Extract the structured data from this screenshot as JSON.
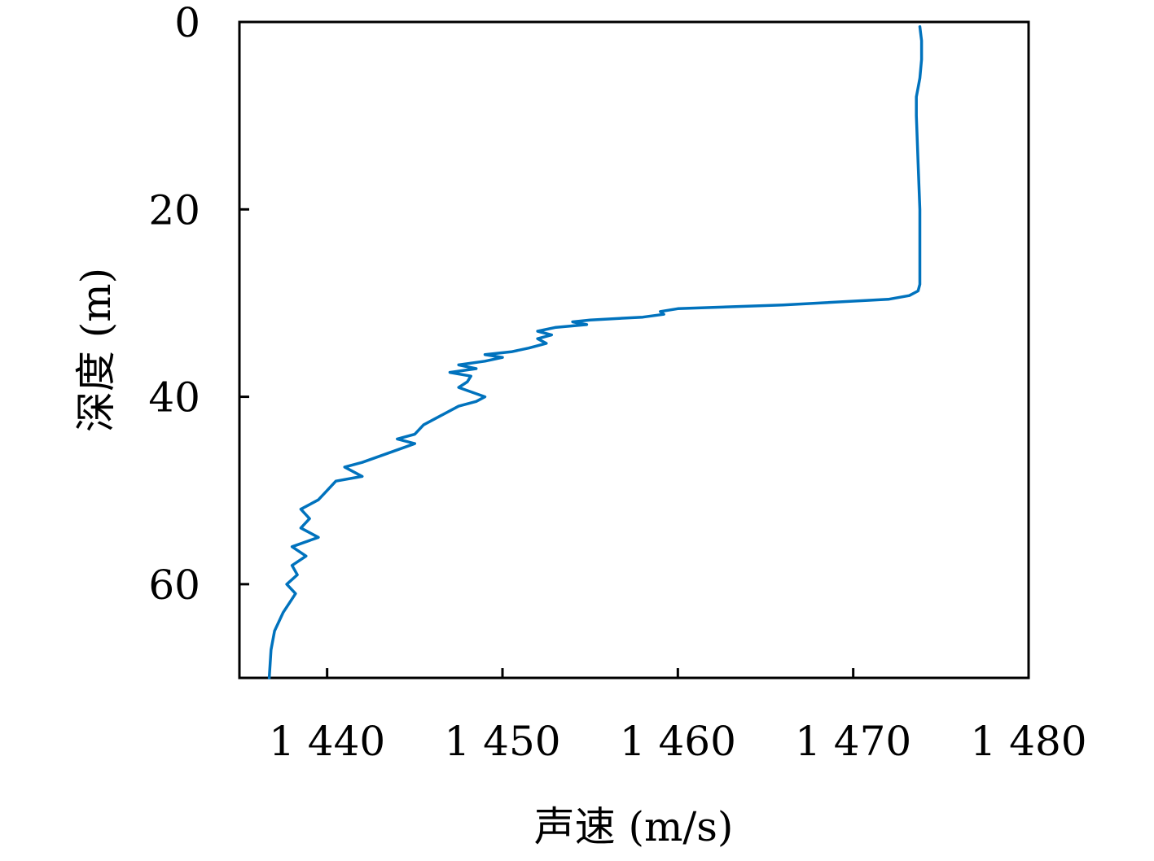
{
  "chart_data": {
    "type": "line",
    "xlabel": "声速 (m/s)",
    "ylabel": "深度 (m)",
    "xlim": [
      1435,
      1480
    ],
    "ylim": [
      0,
      70
    ],
    "y_inverted": true,
    "grid": false,
    "xticks": [
      1440,
      1450,
      1460,
      1470,
      1480
    ],
    "xtick_labels": [
      "1 440",
      "1 450",
      "1 460",
      "1 470",
      "1 480"
    ],
    "yticks": [
      0,
      20,
      40,
      60
    ],
    "ytick_labels": [
      "0",
      "20",
      "40",
      "60"
    ],
    "line_color": "#0072BD",
    "series": [
      {
        "x": [
          1473.8,
          1473.9,
          1473.9,
          1473.8,
          1473.6,
          1473.6,
          1473.7,
          1473.8,
          1473.8,
          1473.8,
          1473.8,
          1473.7,
          1473.2,
          1472.0,
          1466.0,
          1460.0,
          1459.0,
          1459.2,
          1458.0,
          1455.0,
          1454.0,
          1454.8,
          1453.0,
          1452.0,
          1452.8,
          1452.0,
          1452.5,
          1451.5,
          1450.5,
          1449.0,
          1450.0,
          1449.0,
          1447.5,
          1448.5,
          1447.0,
          1448.2,
          1448.0,
          1447.5,
          1449.0,
          1448.5,
          1447.5,
          1446.5,
          1445.5,
          1445.0,
          1444.0,
          1445.0,
          1443.5,
          1442.0,
          1441.0,
          1442.0,
          1440.5,
          1440.0,
          1439.5,
          1438.5,
          1439.0,
          1438.5,
          1439.5,
          1438.0,
          1438.8,
          1438.0,
          1438.3,
          1437.7,
          1438.2,
          1437.5,
          1437.0,
          1436.8,
          1436.7
        ],
        "y": [
          0.5,
          2,
          4,
          6,
          8,
          10,
          15,
          20,
          25,
          27,
          28,
          28.7,
          29.2,
          29.6,
          30.2,
          30.6,
          30.9,
          31.2,
          31.5,
          31.8,
          32.0,
          32.3,
          32.6,
          33.0,
          33.4,
          33.8,
          34.3,
          34.8,
          35.2,
          35.5,
          35.8,
          36.2,
          36.6,
          37.0,
          37.4,
          37.8,
          38.4,
          39.0,
          40.0,
          40.5,
          41.0,
          42.0,
          43.0,
          44.0,
          44.5,
          45.0,
          46.0,
          47.0,
          47.5,
          48.5,
          49.0,
          50.0,
          51.0,
          52.0,
          53.0,
          54.0,
          55.0,
          56.0,
          57.0,
          58.0,
          59.0,
          60.0,
          61.0,
          63.0,
          65.0,
          67.0,
          70.0
        ]
      }
    ]
  }
}
